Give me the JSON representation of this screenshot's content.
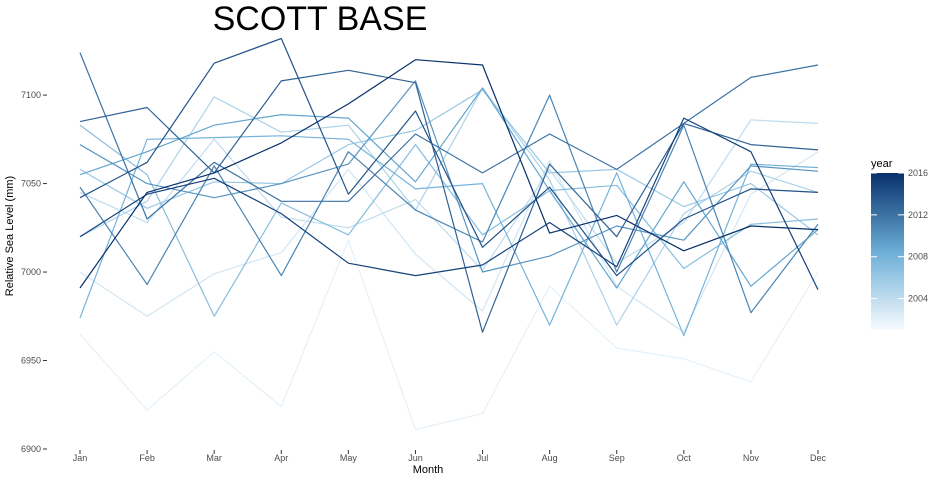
{
  "chart_data": {
    "type": "line",
    "title": "SCOTT BASE",
    "xlabel": "Month",
    "ylabel": "Relative Sea Level (mm)",
    "categories": [
      "Jan",
      "Feb",
      "Mar",
      "Apr",
      "May",
      "Jun",
      "Jul",
      "Aug",
      "Sep",
      "Oct",
      "Nov",
      "Dec"
    ],
    "ylim": [
      6900,
      7130
    ],
    "yticks": [
      6900,
      6950,
      7000,
      7050,
      7100
    ],
    "grid": false,
    "legend": {
      "title": "year",
      "position": "right",
      "range": [
        2001,
        2016
      ],
      "ticks": [
        2004,
        2008,
        2012,
        2016
      ],
      "colors": {
        "low": "#f7fbff",
        "mid": "#6baed6",
        "high": "#08306b"
      }
    },
    "series": [
      {
        "name": "2002",
        "year": 2002,
        "values": [
          6965,
          6922,
          6955,
          6924,
          7018,
          6911,
          6920,
          6992,
          6957,
          6951,
          6938,
          7000
        ]
      },
      {
        "name": "2003",
        "year": 2003,
        "values": [
          7000,
          6975,
          6999,
          7011,
          7058,
          7010,
          6978,
          7063,
          6992,
          6966,
          7044,
          7068
        ]
      },
      {
        "name": "2004",
        "year": 2004,
        "values": [
          7045,
          7028,
          7075,
          7031,
          7025,
          7041,
          7001,
          7058,
          7005,
          7028,
          7086,
          7084
        ]
      },
      {
        "name": "2005",
        "year": 2005,
        "values": [
          7020,
          7040,
          7099,
          7079,
          7083,
          7035,
          7104,
          7052,
          6970,
          7033,
          7057,
          7045
        ]
      },
      {
        "name": "2006",
        "year": 2006,
        "values": [
          7058,
          7036,
          7051,
          7050,
          7072,
          7080,
          7103,
          7056,
          7058,
          7037,
          7050,
          7021
        ]
      },
      {
        "name": "2007",
        "year": 2007,
        "values": [
          7083,
          7055,
          6975,
          7039,
          7021,
          7072,
          7021,
          7046,
          7049,
          7002,
          7027,
          7030
        ]
      },
      {
        "name": "2008",
        "year": 2008,
        "values": [
          6974,
          7075,
          7076,
          7077,
          7075,
          7047,
          7050,
          6970,
          7056,
          6964,
          7061,
          7059
        ]
      },
      {
        "name": "2009",
        "year": 2009,
        "values": [
          7055,
          7068,
          7083,
          7089,
          7087,
          7051,
          7104,
          7046,
          6991,
          7051,
          6992,
          7024
        ]
      },
      {
        "name": "2010",
        "year": 2010,
        "values": [
          7072,
          7050,
          7042,
          7050,
          7061,
          7108,
          7000,
          7009,
          7026,
          7018,
          7060,
          7057
        ]
      },
      {
        "name": "2011",
        "year": 2011,
        "values": [
          7048,
          6993,
          7060,
          6998,
          7068,
          7035,
          7017,
          7100,
          7000,
          7083,
          6977,
          7027
        ]
      },
      {
        "name": "2012",
        "year": 2012,
        "values": [
          7124,
          7030,
          7062,
          7040,
          7040,
          7078,
          7056,
          7078,
          7058,
          7084,
          7110,
          7117
        ]
      },
      {
        "name": "2013",
        "year": 2013,
        "values": [
          7085,
          7093,
          7056,
          7108,
          7114,
          7107,
          6966,
          7061,
          7020,
          7084,
          7072,
          7069
        ]
      },
      {
        "name": "2014",
        "year": 2014,
        "values": [
          7042,
          7062,
          7118,
          7132,
          7044,
          7091,
          7014,
          7048,
          6998,
          7030,
          7047,
          7045
        ]
      },
      {
        "name": "2015",
        "year": 2015,
        "values": [
          7020,
          7044,
          7053,
          7033,
          7005,
          6998,
          7004,
          7028,
          7003,
          7087,
          7068,
          6990
        ]
      },
      {
        "name": "2016",
        "year": 2016,
        "values": [
          6991,
          7045,
          7056,
          7073,
          7095,
          7120,
          7117,
          7022,
          7032,
          7012,
          7026,
          7024
        ]
      }
    ]
  }
}
